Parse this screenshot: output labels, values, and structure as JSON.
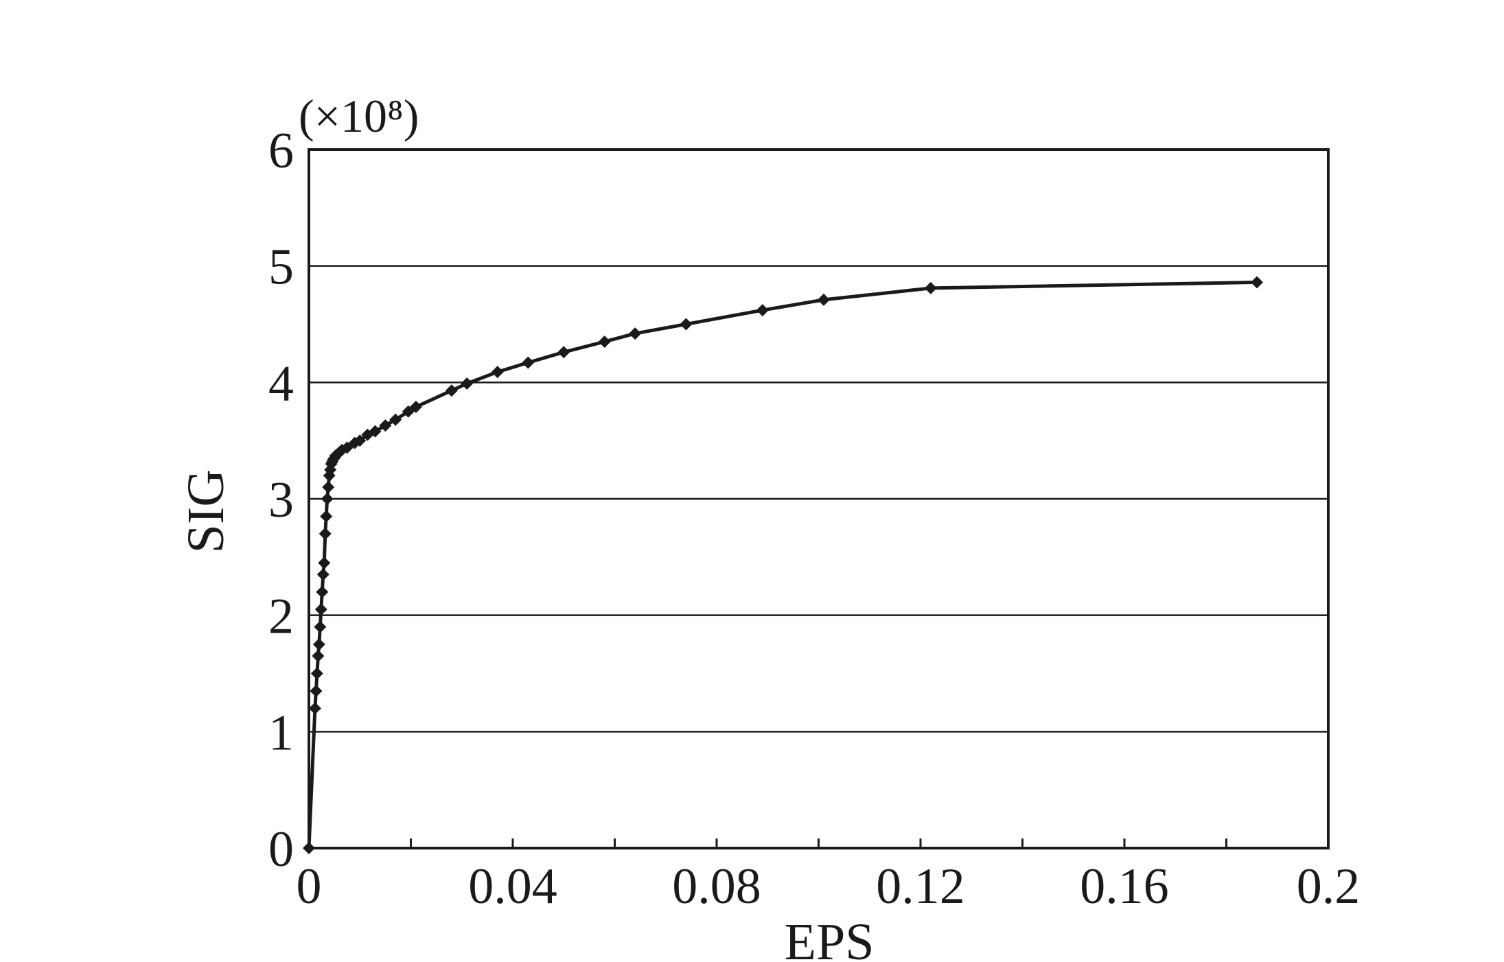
{
  "chart_data": {
    "type": "line",
    "xlabel": "EPS",
    "ylabel": "SIG",
    "y_multiplier_label": "(×10⁸)",
    "xlim": [
      0,
      0.2
    ],
    "ylim": [
      0,
      6
    ],
    "x_ticks": [
      0,
      0.02,
      0.04,
      0.06,
      0.08,
      0.1,
      0.12,
      0.14,
      0.16,
      0.18,
      0.2
    ],
    "x_tick_labels": [
      {
        "value": 0,
        "label": "0"
      },
      {
        "value": 0.04,
        "label": "0.04"
      },
      {
        "value": 0.08,
        "label": "0.08"
      },
      {
        "value": 0.12,
        "label": "0.12"
      },
      {
        "value": 0.16,
        "label": "0.16"
      },
      {
        "value": 0.2,
        "label": "0.2"
      }
    ],
    "y_ticks": [
      0,
      1,
      2,
      3,
      4,
      5,
      6
    ],
    "y_tick_labels": [
      "0",
      "1",
      "2",
      "3",
      "4",
      "5",
      "6"
    ],
    "grid": "horizontal",
    "legend": "none",
    "color": "#1a1a1a",
    "series": [
      {
        "x": [
          0,
          0.0012,
          0.0014,
          0.0016,
          0.0018,
          0.002,
          0.0022,
          0.0024,
          0.0026,
          0.0028,
          0.003,
          0.0032,
          0.0034,
          0.0036,
          0.0038,
          0.004,
          0.0042,
          0.0044,
          0.0046,
          0.0048,
          0.005,
          0.0052,
          0.0055,
          0.006,
          0.0065,
          0.0075,
          0.009,
          0.01,
          0.0115,
          0.013,
          0.015,
          0.017,
          0.0195,
          0.021,
          0.028,
          0.031,
          0.037,
          0.043,
          0.05,
          0.058,
          0.064,
          0.074,
          0.089,
          0.101,
          0.122,
          0.186
        ],
        "y": [
          0,
          1.2,
          1.35,
          1.5,
          1.65,
          1.75,
          1.9,
          2.05,
          2.2,
          2.35,
          2.45,
          2.7,
          2.85,
          3.0,
          3.1,
          3.2,
          3.25,
          3.3,
          3.32,
          3.34,
          3.35,
          3.37,
          3.38,
          3.4,
          3.42,
          3.44,
          3.48,
          3.5,
          3.55,
          3.58,
          3.63,
          3.68,
          3.75,
          3.79,
          3.93,
          3.99,
          4.09,
          4.17,
          4.26,
          4.35,
          4.42,
          4.5,
          4.62,
          4.71,
          4.81,
          4.86
        ]
      }
    ]
  }
}
